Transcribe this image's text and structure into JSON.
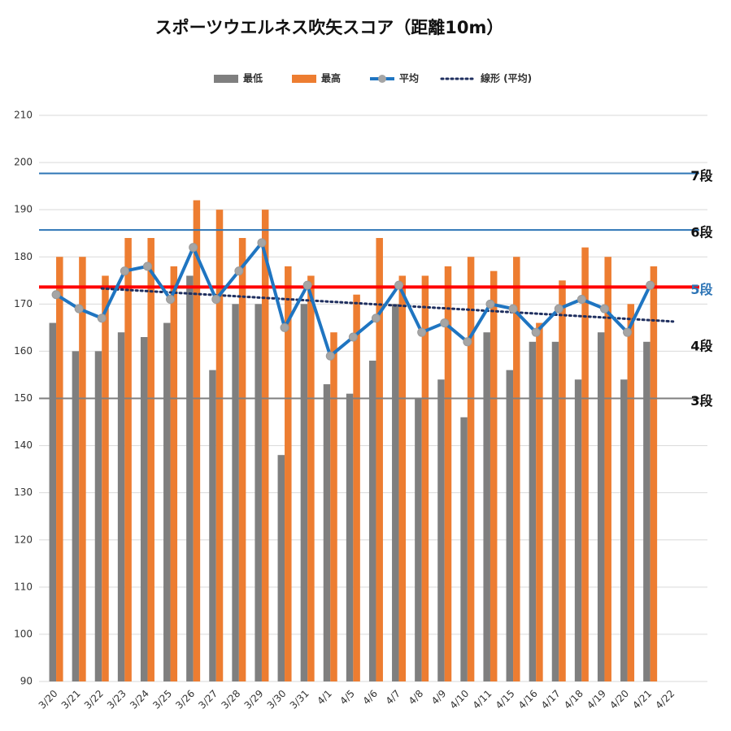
{
  "chart_data": {
    "type": "bar",
    "title": "スポーツウエルネス吹矢スコア（距離10m）",
    "categories": [
      "3/20",
      "3/21",
      "3/22",
      "3/23",
      "3/24",
      "3/25",
      "3/26",
      "3/27",
      "3/28",
      "3/29",
      "3/30",
      "3/31",
      "4/1",
      "4/5",
      "4/6",
      "4/7",
      "4/8",
      "4/9",
      "4/10",
      "4/11",
      "4/15",
      "4/16",
      "4/17",
      "4/18",
      "4/19",
      "4/20",
      "4/21",
      "4/22"
    ],
    "series": [
      {
        "name": "最低",
        "color": "#7f7f7f",
        "kind": "bar",
        "values": [
          166,
          160,
          160,
          164,
          163,
          166,
          176,
          156,
          170,
          170,
          138,
          170,
          153,
          151,
          158,
          170,
          150,
          154,
          146,
          164,
          156,
          162,
          162,
          154,
          164,
          154,
          162,
          null
        ]
      },
      {
        "name": "最高",
        "color": "#ed7d31",
        "kind": "bar",
        "values": [
          180,
          180,
          176,
          184,
          184,
          178,
          192,
          190,
          184,
          190,
          178,
          176,
          164,
          172,
          184,
          176,
          176,
          178,
          180,
          177,
          180,
          166,
          175,
          182,
          180,
          170,
          178,
          null
        ]
      },
      {
        "name": "平均",
        "color": "#1f75c1",
        "kind": "line",
        "values": [
          172,
          169,
          167,
          177,
          178,
          171,
          182,
          171,
          177,
          183,
          165,
          174,
          159,
          163,
          167,
          174,
          164,
          166,
          162,
          170,
          169,
          164,
          169,
          171,
          169,
          164,
          174,
          null
        ]
      }
    ],
    "trend": {
      "name": "線形 (平均)",
      "color": "#1f2f5f",
      "categories": [
        "3/22",
        "4/22"
      ],
      "values": [
        173.3,
        166.3
      ]
    },
    "levels": [
      {
        "label": "7段",
        "value": 197.7,
        "color": "#2e75b6",
        "label_color": "#111",
        "width": 2
      },
      {
        "label": "6段",
        "value": 185.7,
        "color": "#2e75b6",
        "label_color": "#111",
        "width": 2
      },
      {
        "label": "5段",
        "value": 173.6,
        "color": "#ff0000",
        "label_color": "#2e75b6",
        "width": 4
      },
      {
        "label": "4段",
        "value": 161.6,
        "color": null,
        "label_color": "#111",
        "width": 0
      },
      {
        "label": "3段",
        "value": 150,
        "color": "#7f7f7f",
        "label_color": "#111",
        "width": 2
      }
    ],
    "ylim": [
      90,
      210
    ],
    "yticks": [
      90,
      100,
      110,
      120,
      130,
      140,
      150,
      160,
      170,
      180,
      190,
      200,
      210
    ],
    "grid": true
  }
}
